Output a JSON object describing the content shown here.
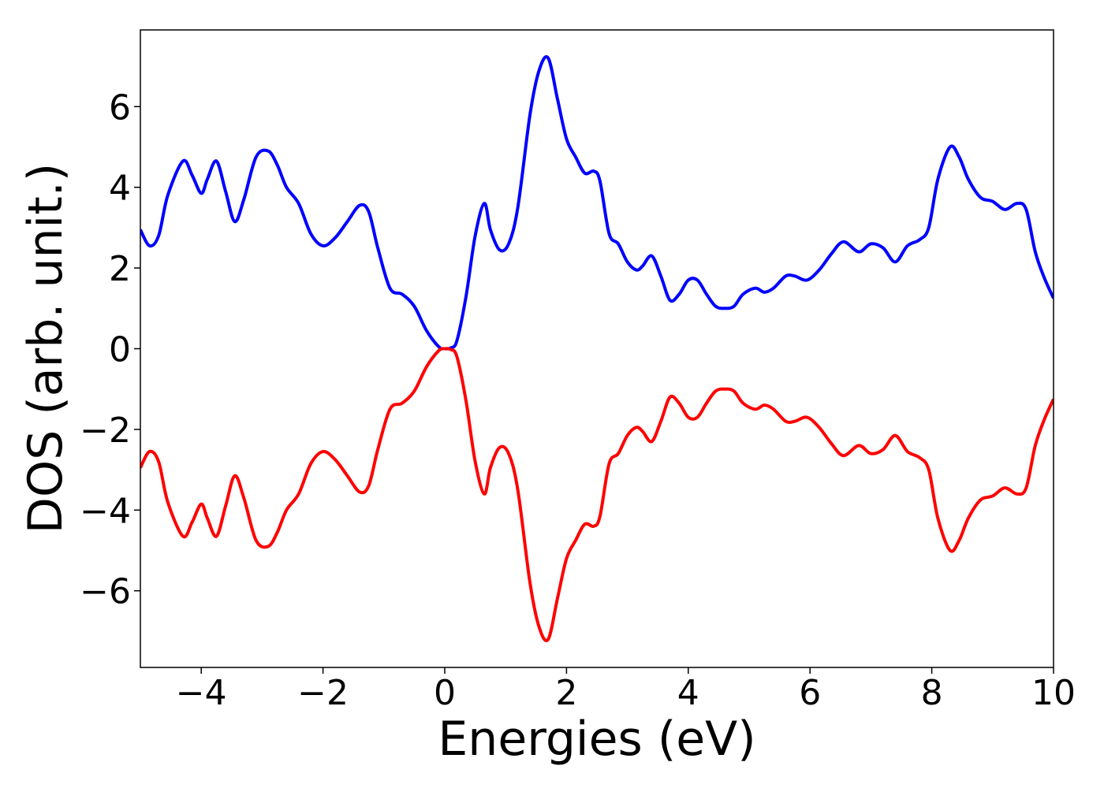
{
  "chart_data": {
    "type": "line",
    "title": "",
    "xlabel": "Energies (eV)",
    "ylabel": "DOS (arb. unit.)",
    "xlim": [
      -5,
      10
    ],
    "ylim": [
      -7.9,
      7.9
    ],
    "xticks": [
      -4,
      -2,
      0,
      2,
      4,
      6,
      8,
      10
    ],
    "xtick_labels": [
      "−4",
      "−2",
      "0",
      "2",
      "4",
      "6",
      "8",
      "10"
    ],
    "yticks": [
      -6,
      -4,
      -2,
      0,
      2,
      4,
      6
    ],
    "ytick_labels": [
      "−6",
      "−4",
      "−2",
      "0",
      "2",
      "4",
      "6"
    ],
    "grid": false,
    "legend": "none",
    "series": [
      {
        "color": "#0000ff",
        "x": [
          -5.0,
          -4.85,
          -4.7,
          -4.55,
          -4.3,
          -4.15,
          -4.0,
          -3.9,
          -3.75,
          -3.6,
          -3.45,
          -3.3,
          -3.1,
          -2.9,
          -2.75,
          -2.6,
          -2.4,
          -2.2,
          -2.0,
          -1.8,
          -1.6,
          -1.4,
          -1.25,
          -1.1,
          -0.9,
          -0.7,
          -0.5,
          -0.3,
          -0.1,
          0.0,
          0.1,
          0.2,
          0.35,
          0.5,
          0.65,
          0.75,
          0.9,
          1.05,
          1.2,
          1.4,
          1.55,
          1.7,
          1.85,
          2.0,
          2.15,
          2.3,
          2.45,
          2.55,
          2.7,
          2.85,
          3.0,
          3.15,
          3.25,
          3.4,
          3.55,
          3.7,
          3.85,
          4.0,
          4.15,
          4.3,
          4.45,
          4.6,
          4.75,
          4.9,
          5.1,
          5.25,
          5.4,
          5.6,
          5.75,
          5.95,
          6.15,
          6.35,
          6.55,
          6.8,
          7.0,
          7.2,
          7.4,
          7.6,
          7.8,
          7.95,
          8.1,
          8.3,
          8.45,
          8.6,
          8.8,
          9.0,
          9.2,
          9.4,
          9.55,
          9.7,
          9.85,
          10.0
        ],
        "y": [
          2.95,
          2.55,
          2.8,
          3.8,
          4.65,
          4.3,
          3.85,
          4.2,
          4.65,
          3.9,
          3.15,
          3.7,
          4.75,
          4.9,
          4.55,
          4.0,
          3.6,
          2.85,
          2.55,
          2.75,
          3.15,
          3.55,
          3.4,
          2.5,
          1.5,
          1.35,
          1.05,
          0.45,
          0.05,
          0.0,
          0.02,
          0.2,
          1.3,
          2.8,
          3.6,
          2.95,
          2.45,
          2.6,
          3.5,
          5.8,
          6.9,
          7.2,
          6.2,
          5.2,
          4.75,
          4.35,
          4.4,
          4.15,
          2.85,
          2.6,
          2.15,
          1.95,
          2.05,
          2.3,
          1.8,
          1.2,
          1.35,
          1.7,
          1.7,
          1.35,
          1.05,
          1.0,
          1.05,
          1.35,
          1.5,
          1.4,
          1.5,
          1.8,
          1.8,
          1.7,
          1.95,
          2.35,
          2.65,
          2.4,
          2.6,
          2.5,
          2.15,
          2.55,
          2.7,
          3.0,
          4.2,
          5.0,
          4.75,
          4.2,
          3.75,
          3.65,
          3.45,
          3.6,
          3.45,
          2.4,
          1.75,
          1.25
        ]
      },
      {
        "color": "#ff0000",
        "x": [
          -5.0,
          -4.85,
          -4.7,
          -4.55,
          -4.3,
          -4.15,
          -4.0,
          -3.9,
          -3.75,
          -3.6,
          -3.45,
          -3.3,
          -3.1,
          -2.9,
          -2.75,
          -2.6,
          -2.4,
          -2.2,
          -2.0,
          -1.8,
          -1.6,
          -1.4,
          -1.25,
          -1.1,
          -0.9,
          -0.7,
          -0.5,
          -0.3,
          -0.1,
          0.0,
          0.1,
          0.2,
          0.35,
          0.5,
          0.65,
          0.75,
          0.9,
          1.05,
          1.2,
          1.4,
          1.55,
          1.7,
          1.85,
          2.0,
          2.15,
          2.3,
          2.45,
          2.55,
          2.7,
          2.85,
          3.0,
          3.15,
          3.25,
          3.4,
          3.55,
          3.7,
          3.85,
          4.0,
          4.15,
          4.3,
          4.45,
          4.6,
          4.75,
          4.9,
          5.1,
          5.25,
          5.4,
          5.6,
          5.75,
          5.95,
          6.15,
          6.35,
          6.55,
          6.8,
          7.0,
          7.2,
          7.4,
          7.6,
          7.8,
          7.95,
          8.1,
          8.3,
          8.45,
          8.6,
          8.8,
          9.0,
          9.2,
          9.4,
          9.55,
          9.7,
          9.85,
          10.0
        ],
        "y": [
          -2.95,
          -2.55,
          -2.8,
          -3.8,
          -4.65,
          -4.3,
          -3.85,
          -4.2,
          -4.65,
          -3.9,
          -3.15,
          -3.7,
          -4.75,
          -4.9,
          -4.55,
          -4.0,
          -3.6,
          -2.85,
          -2.55,
          -2.75,
          -3.15,
          -3.55,
          -3.4,
          -2.5,
          -1.5,
          -1.35,
          -1.05,
          -0.45,
          -0.05,
          0.0,
          -0.02,
          -0.2,
          -1.3,
          -2.8,
          -3.6,
          -2.95,
          -2.45,
          -2.6,
          -3.5,
          -5.8,
          -6.9,
          -7.2,
          -6.2,
          -5.2,
          -4.75,
          -4.35,
          -4.4,
          -4.15,
          -2.85,
          -2.6,
          -2.15,
          -1.95,
          -2.05,
          -2.3,
          -1.8,
          -1.2,
          -1.35,
          -1.7,
          -1.7,
          -1.35,
          -1.05,
          -1.0,
          -1.05,
          -1.35,
          -1.5,
          -1.4,
          -1.5,
          -1.8,
          -1.8,
          -1.7,
          -1.95,
          -2.35,
          -2.65,
          -2.4,
          -2.6,
          -2.5,
          -2.15,
          -2.55,
          -2.7,
          -3.0,
          -4.2,
          -5.0,
          -4.75,
          -4.2,
          -3.75,
          -3.65,
          -3.45,
          -3.6,
          -3.45,
          -2.4,
          -1.75,
          -1.25
        ]
      }
    ]
  }
}
